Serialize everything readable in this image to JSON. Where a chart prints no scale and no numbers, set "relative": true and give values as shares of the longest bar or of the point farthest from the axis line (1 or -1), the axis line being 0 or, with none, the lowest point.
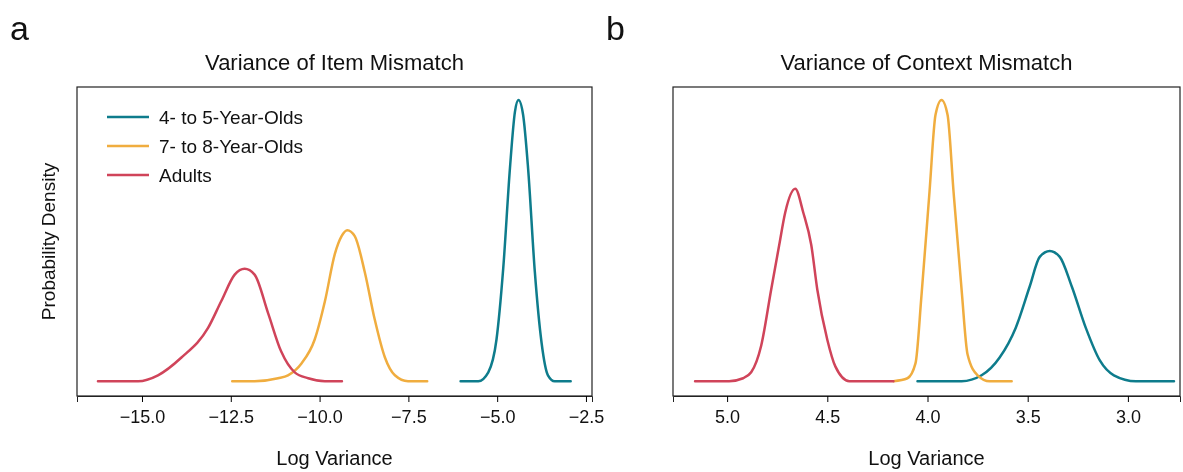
{
  "chart_data": [
    {
      "type": "line",
      "title": "Variance of Item Mismatch",
      "xlabel": "Log Variance",
      "ylabel": "Probability Density",
      "relative": true,
      "legend": "top left",
      "annotations": [
        "a"
      ],
      "xlim": [
        -16.83,
        -2.33
      ],
      "xticks": [
        {
          "value": -15,
          "label": "−15.0"
        },
        {
          "value": -12.5,
          "label": "−12.5"
        },
        {
          "value": -10,
          "label": "−10.0"
        },
        {
          "value": -7.5,
          "label": "−7.5"
        },
        {
          "value": -5,
          "label": "−5.0"
        },
        {
          "value": -2.5,
          "label": "−2.5"
        }
      ],
      "series": [
        {
          "name": "4- to 5-Year-Olds",
          "color": "#0e7c8c",
          "x": [
            -6.03,
            -5.53,
            -5.25,
            -5.02,
            -4.83,
            -4.64,
            -4.5,
            -4.4,
            -4.27,
            -4.13,
            -3.94,
            -3.75,
            -3.57,
            -3.38,
            -2.93
          ],
          "values": [
            0.05,
            0.05,
            0.08,
            0.19,
            0.43,
            0.77,
            0.96,
            1,
            0.95,
            0.77,
            0.42,
            0.18,
            0.07,
            0.05,
            0.05
          ]
        },
        {
          "name": "7- to 8-Year-Olds",
          "color": "#f0ad3f",
          "x": [
            -12.46,
            -11.83,
            -11.17,
            -10.89,
            -10.51,
            -10.14,
            -9.85,
            -9.57,
            -9.38,
            -9.22,
            -9.01,
            -8.73,
            -8.45,
            -8.16,
            -7.88,
            -7.51,
            -6.97
          ],
          "values": [
            0.05,
            0.05,
            0.06,
            0.07,
            0.11,
            0.19,
            0.32,
            0.48,
            0.54,
            0.56,
            0.54,
            0.42,
            0.26,
            0.13,
            0.07,
            0.05,
            0.05
          ]
        },
        {
          "name": "Adults",
          "color": "#d0445a",
          "x": [
            -16.24,
            -15.11,
            -14.55,
            -13.89,
            -13.14,
            -12.77,
            -12.39,
            -12.11,
            -11.83,
            -11.45,
            -11.08,
            -10.7,
            -10.32,
            -9.85,
            -9.37
          ],
          "values": [
            0.05,
            0.05,
            0.07,
            0.13,
            0.23,
            0.32,
            0.41,
            0.43,
            0.41,
            0.28,
            0.15,
            0.08,
            0.06,
            0.05,
            0.05
          ]
        }
      ]
    },
    {
      "type": "line",
      "title": "Variance of Context Mismatch",
      "xlabel": "Log Variance",
      "relative": true,
      "annotations": [
        "b"
      ],
      "xlim": [
        5.27,
        2.74
      ],
      "xticks": [
        {
          "value": 5,
          "label": "5.0"
        },
        {
          "value": 4.5,
          "label": "4.5"
        },
        {
          "value": 4,
          "label": "4.0"
        },
        {
          "value": 3.5,
          "label": "3.5"
        },
        {
          "value": 3,
          "label": "3.0"
        }
      ],
      "series": [
        {
          "color": "#0e7c8c",
          "x": [
            4.05,
            3.83,
            3.73,
            3.64,
            3.56,
            3.49,
            3.44,
            3.39,
            3.34,
            3.28,
            3.21,
            3.14,
            3.07,
            2.96,
            2.77
          ],
          "values": [
            0.05,
            0.05,
            0.07,
            0.13,
            0.23,
            0.37,
            0.47,
            0.49,
            0.47,
            0.37,
            0.23,
            0.12,
            0.07,
            0.05,
            0.05
          ]
        },
        {
          "color": "#f0ad3f",
          "x": [
            4.17,
            4.1,
            4.06,
            4.03,
            3.99,
            3.96,
            3.93,
            3.9,
            3.87,
            3.83,
            3.8,
            3.75,
            3.69,
            3.58
          ],
          "values": [
            0.05,
            0.06,
            0.11,
            0.34,
            0.69,
            0.95,
            1,
            0.95,
            0.69,
            0.36,
            0.14,
            0.07,
            0.05,
            0.05
          ]
        },
        {
          "color": "#d0445a",
          "x": [
            5.16,
            4.99,
            4.92,
            4.88,
            4.83,
            4.78,
            4.74,
            4.71,
            4.66,
            4.62,
            4.58,
            4.55,
            4.5,
            4.46,
            4.39,
            4.17
          ],
          "values": [
            0.05,
            0.05,
            0.06,
            0.08,
            0.17,
            0.36,
            0.51,
            0.62,
            0.7,
            0.62,
            0.51,
            0.36,
            0.19,
            0.1,
            0.05,
            0.05
          ]
        }
      ]
    }
  ]
}
